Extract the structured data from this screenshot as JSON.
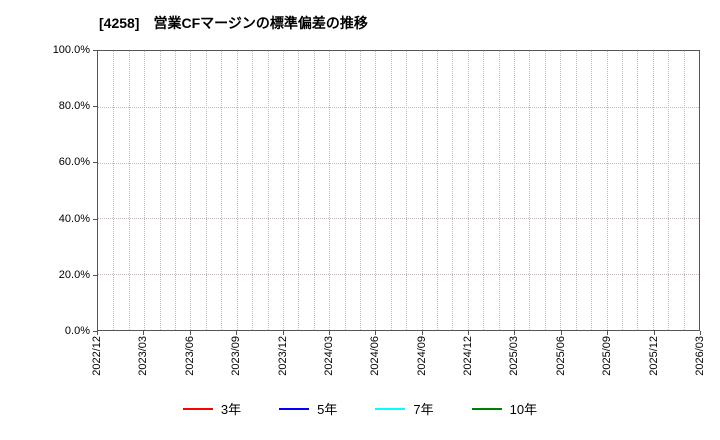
{
  "chart_data": {
    "type": "line",
    "title": "[4258]　営業CFマージンの標準偏差の推移",
    "x_labels": [
      "2022/12",
      "2023/03",
      "2023/06",
      "2023/09",
      "2023/12",
      "2024/03",
      "2024/06",
      "2024/09",
      "2024/12",
      "2025/03",
      "2025/06",
      "2025/09",
      "2025/12",
      "2026/03"
    ],
    "x_minor_divisions_per_interval": 3,
    "y_ticks": [
      "0.0%",
      "20.0%",
      "40.0%",
      "60.0%",
      "80.0%",
      "100.0%"
    ],
    "ylim": [
      0,
      100
    ],
    "grid": true,
    "legend_position": "bottom",
    "series": [
      {
        "name": "3年",
        "color": "#ff0000",
        "values": []
      },
      {
        "name": "5年",
        "color": "#0000ff",
        "values": []
      },
      {
        "name": "7年",
        "color": "#00ffff",
        "values": []
      },
      {
        "name": "10年",
        "color": "#008000",
        "values": []
      }
    ],
    "colors": {
      "grid": "#c9b8b8",
      "frame": "#555555",
      "text": "#000000",
      "background": "#ffffff"
    }
  }
}
